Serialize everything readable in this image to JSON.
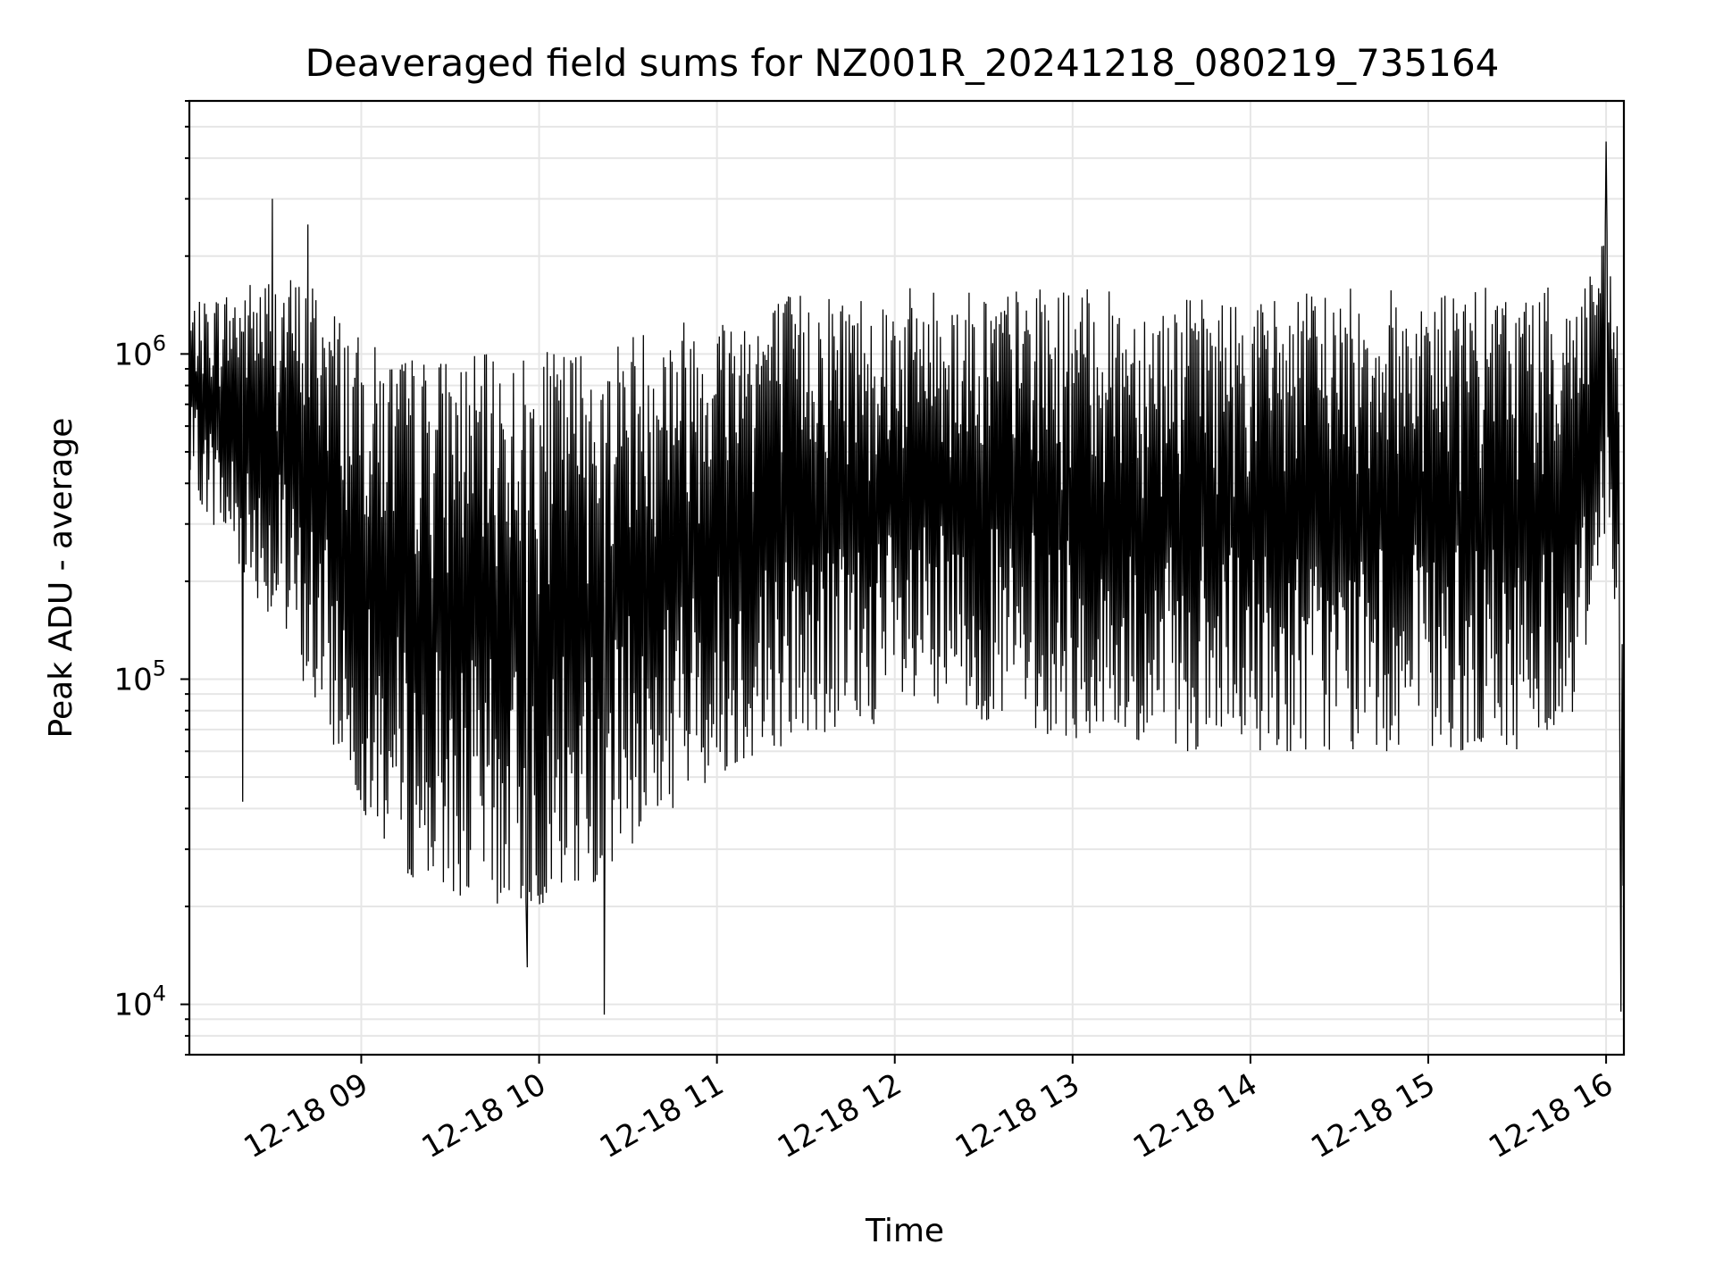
{
  "chart_data": {
    "type": "line",
    "title": "Deaveraged field sums for NZ001R_20241218_080219_735164",
    "xlabel": "Time",
    "ylabel": "Peak ADU - average",
    "yscale": "log",
    "ylim": [
      7000,
      6000000
    ],
    "xlim": [
      "2024-12-18 08:02",
      "2024-12-18 16:06"
    ],
    "grid": true,
    "line_color": "#000000",
    "x_ticks": [
      {
        "value": "2024-12-18 09:00",
        "label": "12-18 09"
      },
      {
        "value": "2024-12-18 10:00",
        "label": "12-18 10"
      },
      {
        "value": "2024-12-18 11:00",
        "label": "12-18 11"
      },
      {
        "value": "2024-12-18 12:00",
        "label": "12-18 12"
      },
      {
        "value": "2024-12-18 13:00",
        "label": "12-18 13"
      },
      {
        "value": "2024-12-18 14:00",
        "label": "12-18 14"
      },
      {
        "value": "2024-12-18 15:00",
        "label": "12-18 15"
      },
      {
        "value": "2024-12-18 16:00",
        "label": "12-18 16"
      }
    ],
    "y_ticks": [
      {
        "value": 10000,
        "base": "10",
        "exp": "4"
      },
      {
        "value": 100000,
        "base": "10",
        "exp": "5"
      },
      {
        "value": 1000000,
        "base": "10",
        "exp": "6"
      }
    ],
    "envelope": {
      "description_of_series": "dense oscillating series; per-time upper and lower envelope of the plotted values",
      "x": [
        "2024-12-18 08:02",
        "2024-12-18 08:15",
        "2024-12-18 08:30",
        "2024-12-18 08:45",
        "2024-12-18 09:00",
        "2024-12-18 09:15",
        "2024-12-18 09:30",
        "2024-12-18 09:45",
        "2024-12-18 10:00",
        "2024-12-18 10:15",
        "2024-12-18 10:30",
        "2024-12-18 10:45",
        "2024-12-18 11:00",
        "2024-12-18 11:15",
        "2024-12-18 11:30",
        "2024-12-18 11:45",
        "2024-12-18 12:00",
        "2024-12-18 12:30",
        "2024-12-18 13:00",
        "2024-12-18 13:30",
        "2024-12-18 14:00",
        "2024-12-18 14:30",
        "2024-12-18 15:00",
        "2024-12-18 15:30",
        "2024-12-18 15:50",
        "2024-12-18 16:00",
        "2024-12-18 16:04",
        "2024-12-18 16:06"
      ],
      "high": [
        1400000,
        1600000,
        1800000,
        1700000,
        1100000,
        1000000,
        1000000,
        1000000,
        1000000,
        1100000,
        1200000,
        1300000,
        1400000,
        1500000,
        1600000,
        1600000,
        1600000,
        1600000,
        1600000,
        1500000,
        1500000,
        1600000,
        1600000,
        1600000,
        1600000,
        2500000,
        1200000,
        130000
      ],
      "low": [
        400000,
        250000,
        150000,
        80000,
        40000,
        25000,
        22000,
        20000,
        20000,
        22000,
        30000,
        40000,
        50000,
        60000,
        65000,
        70000,
        75000,
        75000,
        65000,
        60000,
        60000,
        60000,
        60000,
        60000,
        80000,
        300000,
        100000,
        10000
      ]
    },
    "spikes": [
      {
        "x": "2024-12-18 08:30",
        "y": 3000000
      },
      {
        "x": "2024-12-18 08:42",
        "y": 2500000
      },
      {
        "x": "2024-12-18 08:20",
        "y": 42000
      },
      {
        "x": "2024-12-18 10:22",
        "y": 9300
      },
      {
        "x": "2024-12-18 09:56",
        "y": 13000
      },
      {
        "x": "2024-12-18 16:00",
        "y": 4500000
      },
      {
        "x": "2024-12-18 16:05",
        "y": 9500
      }
    ]
  }
}
